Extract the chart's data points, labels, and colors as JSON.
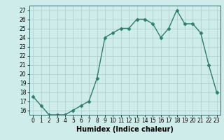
{
  "x": [
    0,
    1,
    2,
    3,
    4,
    5,
    6,
    7,
    8,
    9,
    10,
    11,
    12,
    13,
    14,
    15,
    16,
    17,
    18,
    19,
    20,
    21,
    22,
    23
  ],
  "y": [
    17.5,
    16.5,
    15.5,
    15.5,
    15.5,
    16.0,
    16.5,
    17.0,
    19.5,
    24.0,
    24.5,
    25.0,
    25.0,
    26.0,
    26.0,
    25.5,
    24.0,
    25.0,
    27.0,
    25.5,
    25.5,
    24.5,
    21.0,
    18.0
  ],
  "line_color": "#2e7d6e",
  "marker": "D",
  "marker_size": 2.5,
  "xlabel": "Humidex (Indice chaleur)",
  "xlim": [
    -0.5,
    23.5
  ],
  "ylim": [
    15.5,
    27.5
  ],
  "yticks": [
    16,
    17,
    18,
    19,
    20,
    21,
    22,
    23,
    24,
    25,
    26,
    27
  ],
  "xticks": [
    0,
    1,
    2,
    3,
    4,
    5,
    6,
    7,
    8,
    9,
    10,
    11,
    12,
    13,
    14,
    15,
    16,
    17,
    18,
    19,
    20,
    21,
    22,
    23
  ],
  "bg_color": "#ceecea",
  "grid_color": "#aacdc8",
  "tick_fontsize": 5.5,
  "xlabel_fontsize": 7,
  "linewidth": 1.0
}
